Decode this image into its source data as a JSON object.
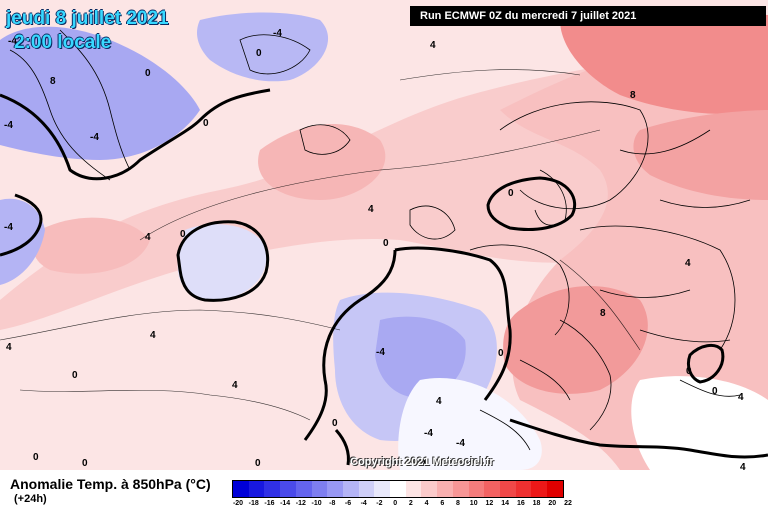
{
  "header": {
    "date_line": "jeudi 8 juillet 2021",
    "time_line": "2:00 locale",
    "run_label": "Run ECMWF 0Z du mercredi 7 juillet 2021"
  },
  "footer": {
    "product_title": "Anomalie Temp. à 850hPa (°C)",
    "lead_time": "(+24h)",
    "copyright": "Copyright 2021 Meteociel.fr"
  },
  "legend": {
    "ticks": [
      "-20",
      "-18",
      "-16",
      "-14",
      "-12",
      "-10",
      "-8",
      "-6",
      "-4",
      "-2",
      "0",
      "2",
      "4",
      "6",
      "8",
      "10",
      "12",
      "14",
      "16",
      "18",
      "20",
      "22"
    ],
    "colors": [
      "#0000d8",
      "#1818e0",
      "#3030e6",
      "#4a4aea",
      "#6464ee",
      "#7e7ef0",
      "#9898f4",
      "#b4b4f6",
      "#cfcff8",
      "#e8e8fb",
      "#ffffff",
      "#fde4e4",
      "#fbcaca",
      "#f9b0b0",
      "#f79696",
      "#f57c7c",
      "#f36262",
      "#f04848",
      "#ee3030",
      "#ec1818",
      "#e00000"
    ]
  },
  "map": {
    "contour_labels": [
      "0",
      "-4",
      "4",
      "8",
      "0",
      "0",
      "-4",
      "0",
      "4",
      "0",
      "-4",
      "8",
      "4",
      "4",
      "0",
      "0",
      "-4",
      "4",
      "-4",
      "8",
      "0",
      "4",
      "0",
      "0",
      "0",
      "4",
      "-4",
      "4",
      "0",
      "0",
      "-4",
      "4",
      "0",
      "-4",
      "0",
      "4"
    ],
    "colors": {
      "cold": "#9e9ef2",
      "cool": "#c8c8f6",
      "neutral": "#ffffff",
      "warm_light": "#fce3e3",
      "warm": "#f8c4c4",
      "hot": "#f39a9a",
      "coast": "#000000"
    }
  }
}
